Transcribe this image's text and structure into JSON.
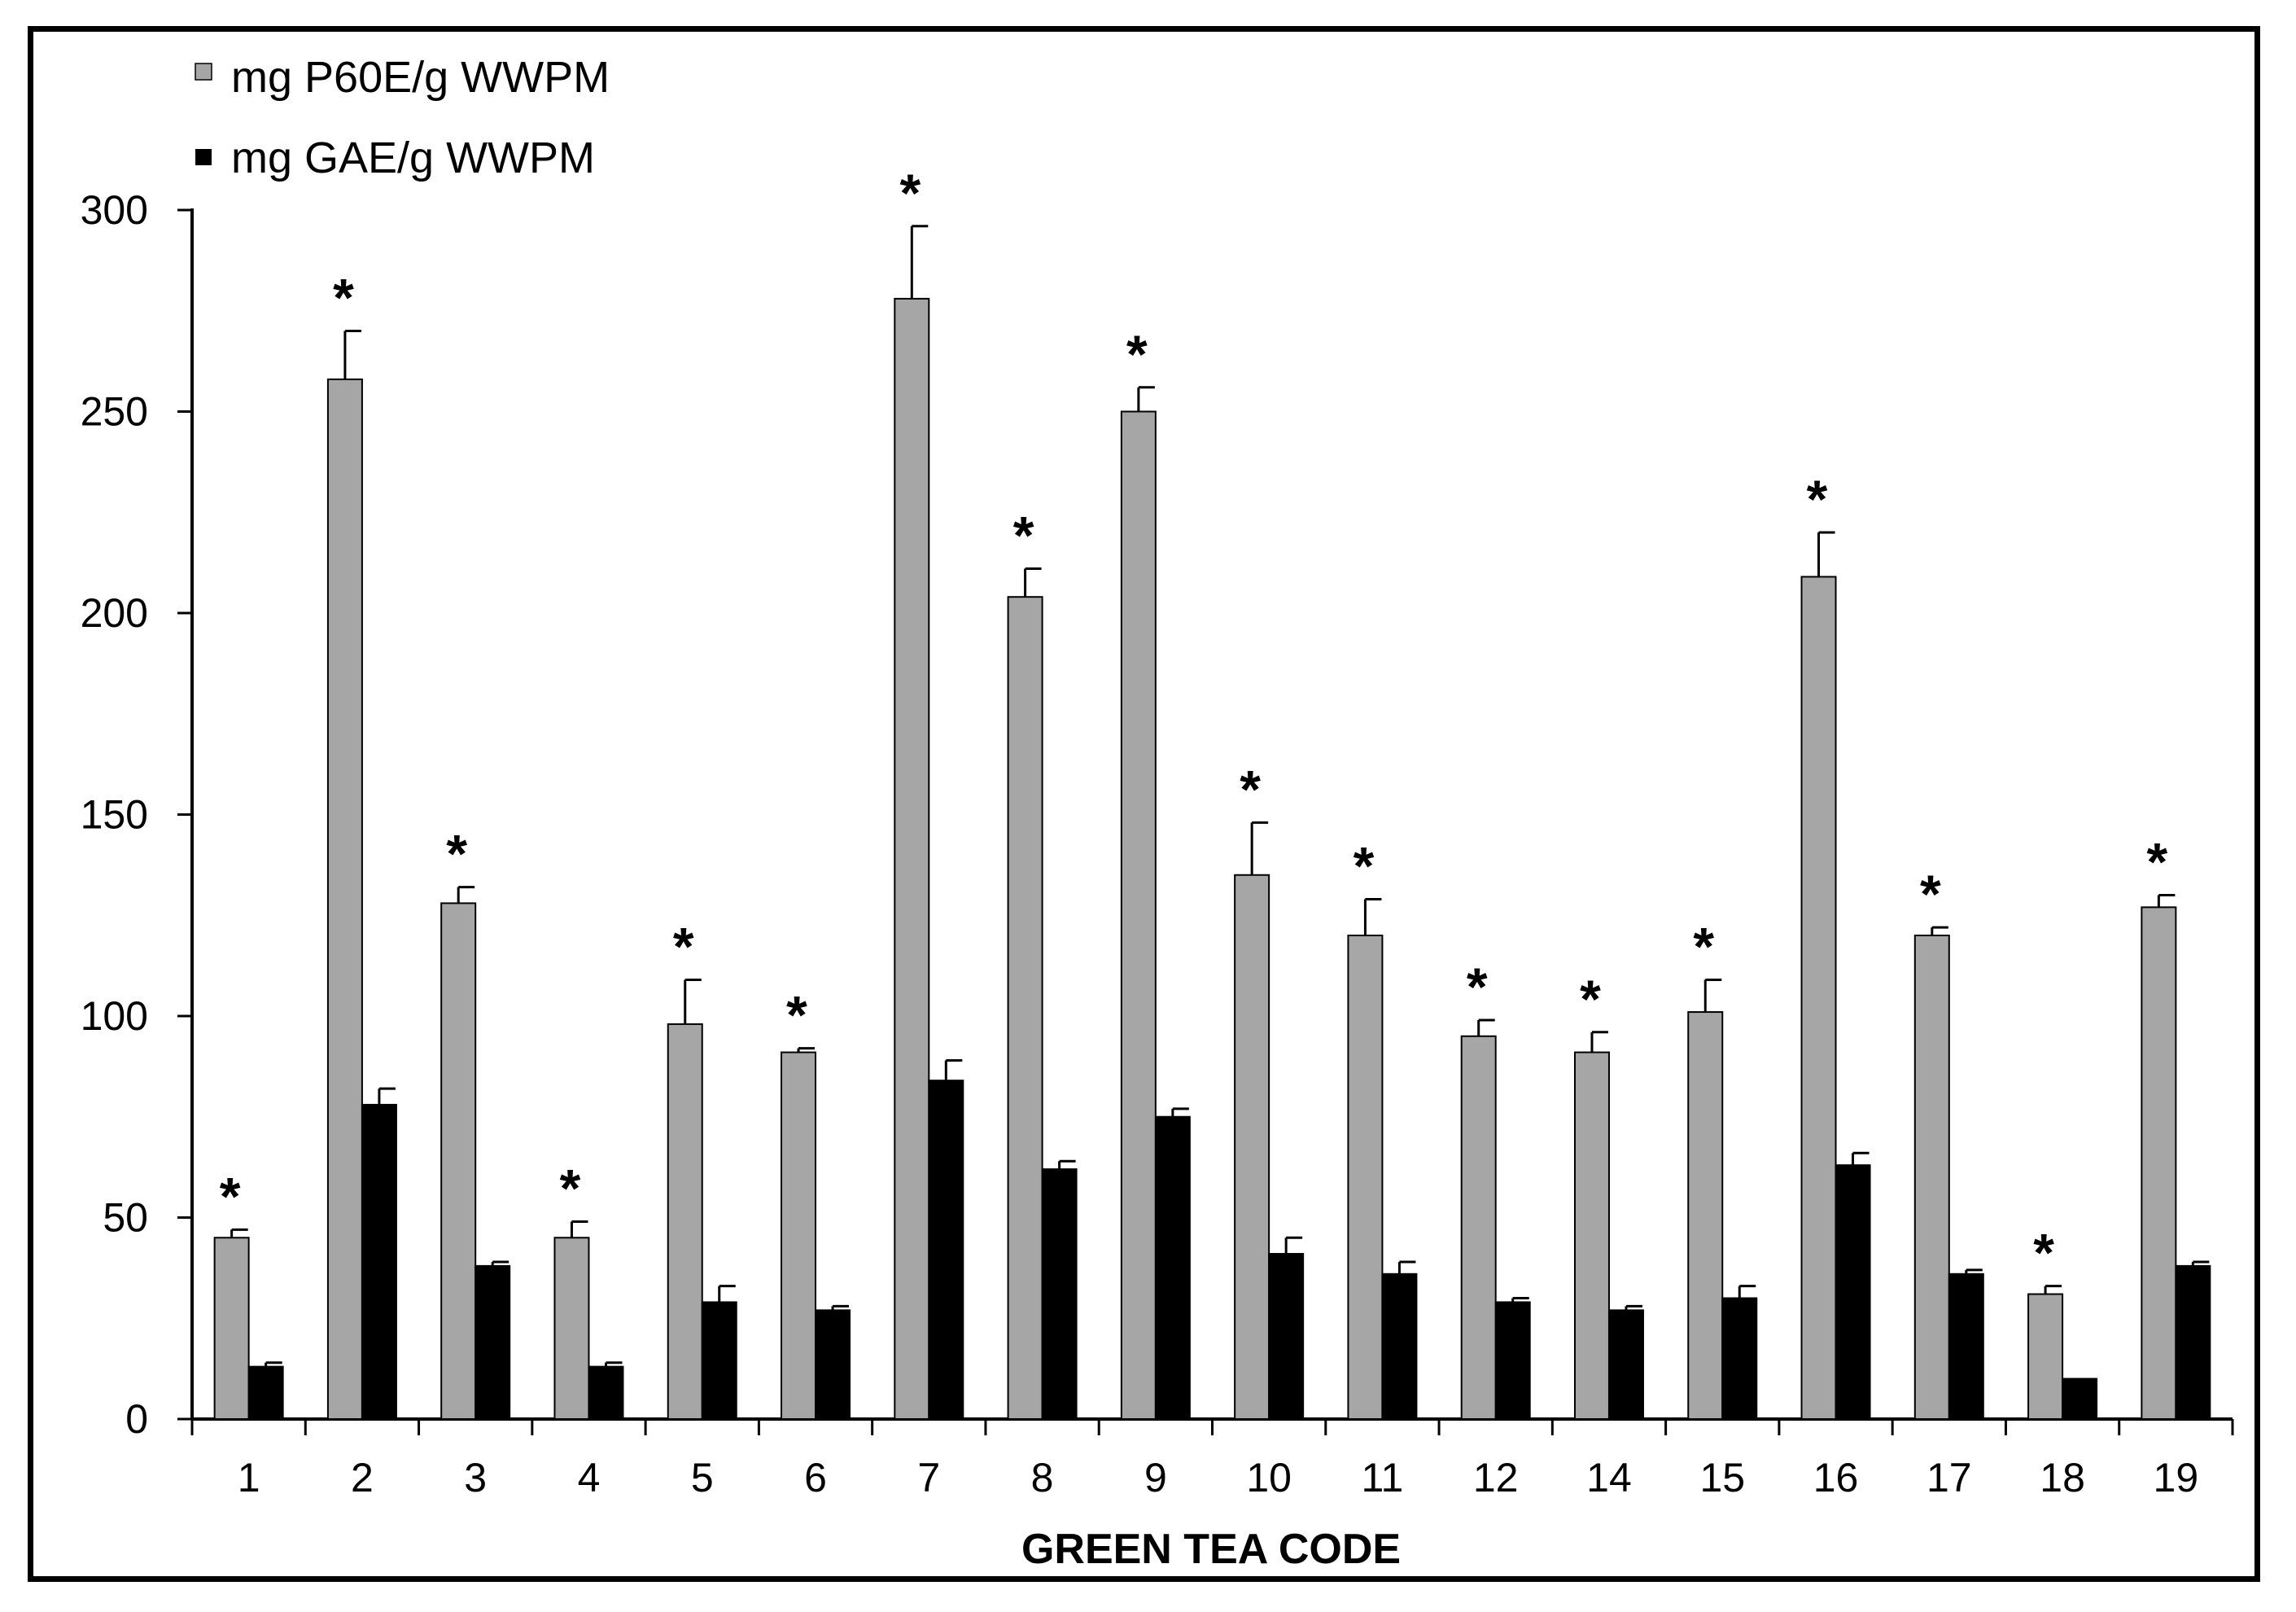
{
  "chart_data": {
    "type": "bar",
    "title": "",
    "xlabel": "GREEN TEA CODE",
    "ylabel": "",
    "ylim": [
      0,
      300
    ],
    "yticks": [
      0,
      50,
      100,
      150,
      200,
      250,
      300
    ],
    "grid": false,
    "legend_position": "top-left",
    "categories": [
      "1",
      "2",
      "3",
      "4",
      "5",
      "6",
      "7",
      "8",
      "9",
      "10",
      "11",
      "12",
      "14",
      "15",
      "16",
      "17",
      "18",
      "19"
    ],
    "series": [
      {
        "name": "mg P60E/g WWPM",
        "color": "#a6a6a6",
        "values": [
          45,
          258,
          128,
          45,
          98,
          91,
          278,
          204,
          250,
          135,
          120,
          95,
          91,
          101,
          209,
          120,
          31,
          127
        ],
        "errors": [
          2,
          12,
          4,
          4,
          11,
          1,
          18,
          7,
          6,
          13,
          9,
          4,
          5,
          8,
          11,
          2,
          2,
          3
        ],
        "significance": [
          "*",
          "*",
          "*",
          "*",
          "*",
          "*",
          "*",
          "*",
          "*",
          "*",
          "*",
          "*",
          "*",
          "*",
          "*",
          "*",
          "*",
          "*"
        ]
      },
      {
        "name": "mg GAE/g WWPM",
        "color": "#000000",
        "values": [
          13,
          78,
          38,
          13,
          29,
          27,
          84,
          62,
          75,
          41,
          36,
          29,
          27,
          30,
          63,
          36,
          10,
          38
        ],
        "errors": [
          1,
          4,
          1,
          1,
          4,
          1,
          5,
          2,
          2,
          4,
          3,
          1,
          1,
          3,
          3,
          1,
          0,
          1
        ]
      }
    ]
  }
}
